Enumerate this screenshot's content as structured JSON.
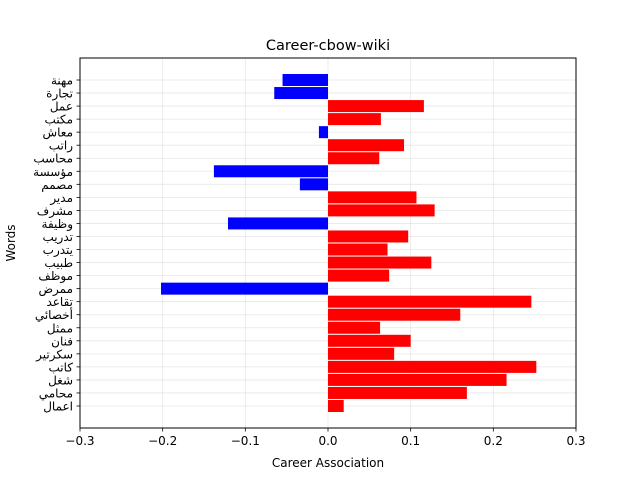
{
  "chart_data": {
    "type": "bar",
    "orientation": "horizontal",
    "title": "Career-cbow-wiki",
    "xlabel": "Career Association",
    "ylabel": "Words",
    "xlim": [
      -0.3,
      0.3
    ],
    "xticks": [
      -0.3,
      -0.2,
      -0.1,
      0.0,
      0.1,
      0.2,
      0.3
    ],
    "xtick_labels": [
      "−0.3",
      "−0.2",
      "−0.1",
      "0.0",
      "0.1",
      "0.2",
      "0.3"
    ],
    "grid": true,
    "colors": {
      "positive": "#ff0000",
      "negative": "#0000ff"
    },
    "categories": [
      "مهنة",
      "تجارة",
      "عمل",
      "مكتب",
      "معاش",
      "راتب",
      "محاسب",
      "مؤسسة",
      "مصمم",
      "مدير",
      "مشرف",
      "وظيفة",
      "تدريب",
      "يتدرب",
      "طبيب",
      "موظف",
      "ممرض",
      "تقاعد",
      "أخصائي",
      "ممثل",
      "فنان",
      "سكرتير",
      "كاتب",
      "شغل",
      "محامي",
      "اعمال"
    ],
    "values": [
      -0.055,
      -0.065,
      0.116,
      0.064,
      -0.011,
      0.092,
      0.062,
      -0.138,
      -0.034,
      0.107,
      0.129,
      -0.121,
      0.097,
      0.072,
      0.125,
      0.074,
      -0.202,
      0.246,
      0.16,
      0.063,
      0.1,
      0.08,
      0.252,
      0.216,
      0.168,
      0.019
    ]
  }
}
